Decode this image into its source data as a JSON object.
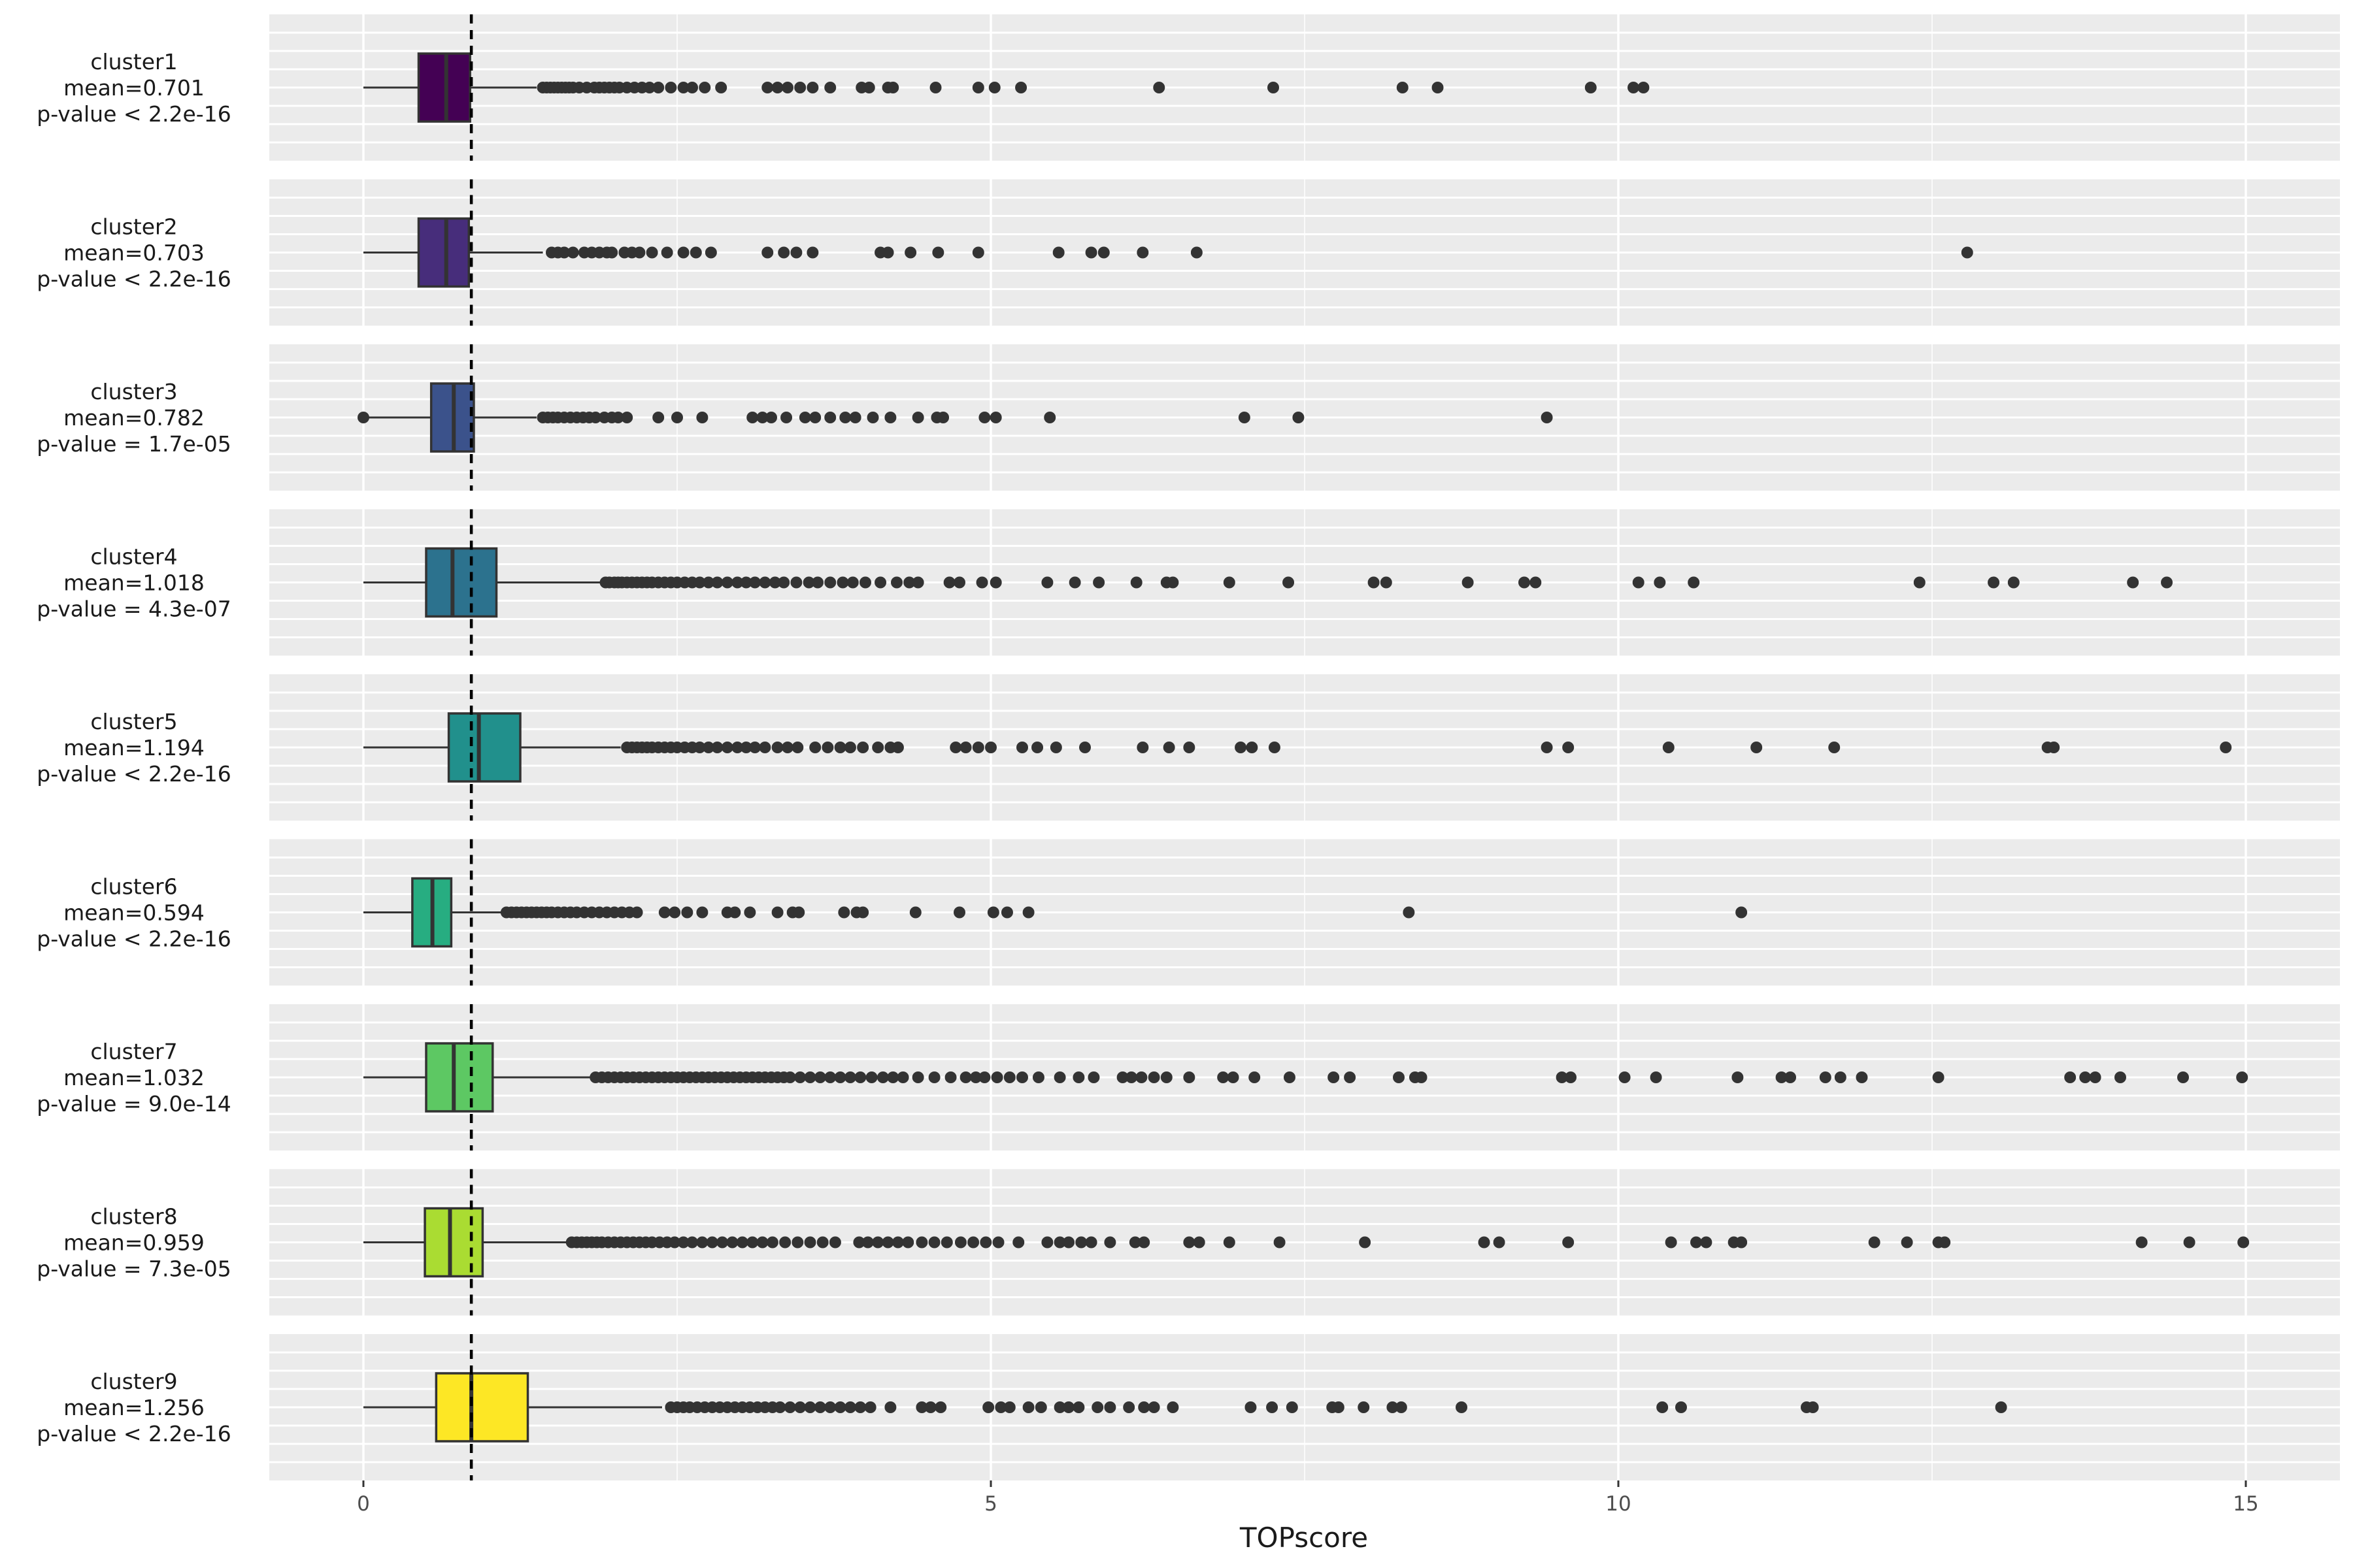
{
  "chart_data": {
    "type": "boxplot",
    "xlabel": "TOPscore",
    "xlim": [
      -0.75,
      15.75
    ],
    "x_ticks": [
      0,
      5,
      10,
      15
    ],
    "x_tick_labels": [
      "0",
      "5",
      "10",
      "15"
    ],
    "reference_line": {
      "x": 0.86,
      "style": "dashed",
      "color": "#000000"
    },
    "grid": true,
    "panels": [
      {
        "name": "cluster1",
        "mean_label": "mean=0.701",
        "pvalue_label": "p-value < 2.2e-16",
        "color": "#440154",
        "whisker_low": 0,
        "q1": 0.44,
        "median": 0.66,
        "q3": 0.85,
        "whisker_high": 1.38,
        "outliers": [
          1.43,
          1.46,
          1.49,
          1.52,
          1.55,
          1.58,
          1.61,
          1.64,
          1.67,
          1.72,
          1.78,
          1.84,
          1.88,
          1.92,
          1.96,
          2.0,
          2.04,
          2.1,
          2.16,
          2.22,
          2.28,
          2.35,
          2.45,
          2.55,
          2.62,
          2.72,
          2.85,
          3.22,
          3.3,
          3.38,
          3.48,
          3.58,
          3.72,
          3.97,
          4.03,
          4.18,
          4.22,
          4.56,
          4.9,
          5.03,
          5.24,
          6.34,
          7.25,
          8.28,
          8.56,
          9.78,
          10.12,
          10.2
        ]
      },
      {
        "name": "cluster2",
        "mean_label": "mean=0.703",
        "pvalue_label": "p-value < 2.2e-16",
        "color": "#472D7B",
        "whisker_low": 0,
        "q1": 0.44,
        "median": 0.66,
        "q3": 0.84,
        "whisker_high": 1.43,
        "outliers": [
          1.5,
          1.55,
          1.6,
          1.67,
          1.76,
          1.82,
          1.88,
          1.94,
          1.98,
          2.08,
          2.14,
          2.2,
          2.3,
          2.42,
          2.55,
          2.65,
          2.77,
          3.22,
          3.35,
          3.45,
          3.58,
          4.12,
          4.18,
          4.36,
          4.58,
          4.9,
          5.54,
          5.8,
          5.9,
          6.21,
          6.64,
          12.78
        ]
      },
      {
        "name": "cluster3",
        "mean_label": "mean=0.782",
        "pvalue_label": "p-value = 1.7e-05",
        "color": "#3B528B",
        "whisker_low": 0.02,
        "q1": 0.54,
        "median": 0.72,
        "q3": 0.88,
        "whisker_high": 1.38,
        "outliers": [
          0.0,
          1.43,
          1.47,
          1.51,
          1.55,
          1.6,
          1.65,
          1.7,
          1.75,
          1.8,
          1.85,
          1.92,
          1.98,
          2.03,
          2.1,
          2.35,
          2.5,
          2.7,
          3.1,
          3.18,
          3.25,
          3.37,
          3.52,
          3.6,
          3.72,
          3.84,
          3.92,
          4.06,
          4.2,
          4.42,
          4.57,
          4.62,
          4.95,
          5.04,
          5.47,
          7.02,
          7.45,
          9.43
        ]
      },
      {
        "name": "cluster4",
        "mean_label": "mean=1.018",
        "pvalue_label": "p-value = 4.3e-07",
        "color": "#2C728E",
        "whisker_low": 0,
        "q1": 0.5,
        "median": 0.71,
        "q3": 1.06,
        "whisker_high": 1.9,
        "outliers": [
          1.93,
          1.96,
          2.0,
          2.03,
          2.06,
          2.1,
          2.14,
          2.18,
          2.22,
          2.26,
          2.3,
          2.35,
          2.4,
          2.45,
          2.5,
          2.56,
          2.62,
          2.68,
          2.75,
          2.82,
          2.9,
          2.98,
          3.05,
          3.12,
          3.2,
          3.28,
          3.35,
          3.45,
          3.55,
          3.62,
          3.72,
          3.82,
          3.9,
          4.0,
          4.12,
          4.25,
          4.35,
          4.42,
          4.67,
          4.75,
          4.93,
          5.04,
          5.45,
          5.67,
          5.86,
          6.16,
          6.4,
          6.45,
          6.9,
          7.37,
          8.05,
          8.15,
          8.8,
          9.25,
          9.34,
          10.16,
          10.33,
          10.6,
          12.4,
          12.99,
          13.15,
          14.1,
          14.37
        ]
      },
      {
        "name": "cluster5",
        "mean_label": "mean=1.194",
        "pvalue_label": "p-value < 2.2e-16",
        "color": "#21908C",
        "whisker_low": 0,
        "q1": 0.68,
        "median": 0.92,
        "q3": 1.25,
        "whisker_high": 2.05,
        "outliers": [
          2.1,
          2.14,
          2.18,
          2.22,
          2.26,
          2.3,
          2.35,
          2.4,
          2.45,
          2.5,
          2.56,
          2.62,
          2.68,
          2.75,
          2.82,
          2.9,
          2.98,
          3.05,
          3.12,
          3.2,
          3.3,
          3.38,
          3.46,
          3.6,
          3.7,
          3.8,
          3.88,
          3.98,
          4.1,
          4.2,
          4.26,
          4.72,
          4.8,
          4.9,
          5.0,
          5.25,
          5.37,
          5.52,
          5.75,
          6.21,
          6.42,
          6.58,
          6.99,
          7.08,
          7.26,
          9.43,
          9.6,
          10.4,
          11.1,
          11.72,
          13.42,
          13.47,
          14.84
        ]
      },
      {
        "name": "cluster6",
        "mean_label": "mean=0.594",
        "pvalue_label": "p-value < 2.2e-16",
        "color": "#27AD81",
        "whisker_low": 0,
        "q1": 0.39,
        "median": 0.55,
        "q3": 0.7,
        "whisker_high": 1.12,
        "outliers": [
          1.14,
          1.18,
          1.22,
          1.26,
          1.3,
          1.34,
          1.38,
          1.42,
          1.46,
          1.5,
          1.55,
          1.6,
          1.65,
          1.7,
          1.76,
          1.82,
          1.88,
          1.94,
          2.0,
          2.06,
          2.12,
          2.18,
          2.4,
          2.48,
          2.58,
          2.7,
          2.9,
          2.96,
          3.08,
          3.3,
          3.42,
          3.47,
          3.83,
          3.93,
          3.98,
          4.4,
          4.75,
          5.02,
          5.13,
          5.3,
          8.33,
          10.98
        ]
      },
      {
        "name": "cluster7",
        "mean_label": "mean=1.032",
        "pvalue_label": "p-value = 9.0e-14",
        "color": "#5DC863",
        "whisker_low": 0,
        "q1": 0.5,
        "median": 0.72,
        "q3": 1.03,
        "whisker_high": 1.82,
        "outliers": [
          1.85,
          1.9,
          1.95,
          2.0,
          2.05,
          2.1,
          2.15,
          2.2,
          2.25,
          2.3,
          2.35,
          2.4,
          2.45,
          2.5,
          2.55,
          2.6,
          2.65,
          2.7,
          2.75,
          2.8,
          2.85,
          2.9,
          2.95,
          3.0,
          3.05,
          3.1,
          3.15,
          3.2,
          3.25,
          3.3,
          3.35,
          3.4,
          3.48,
          3.56,
          3.64,
          3.72,
          3.8,
          3.88,
          3.96,
          4.05,
          4.14,
          4.22,
          4.3,
          4.42,
          4.55,
          4.68,
          4.8,
          4.88,
          4.95,
          5.05,
          5.15,
          5.25,
          5.38,
          5.55,
          5.7,
          5.82,
          6.05,
          6.12,
          6.2,
          6.3,
          6.4,
          6.58,
          6.85,
          6.93,
          7.1,
          7.38,
          7.73,
          7.86,
          8.25,
          8.38,
          8.43,
          9.55,
          9.62,
          10.05,
          10.3,
          10.95,
          11.3,
          11.37,
          11.65,
          11.77,
          11.94,
          12.55,
          13.6,
          13.72,
          13.8,
          14.0,
          14.5,
          14.97
        ]
      },
      {
        "name": "cluster8",
        "mean_label": "mean=0.959",
        "pvalue_label": "p-value = 7.3e-05",
        "color": "#AADC32",
        "whisker_low": 0,
        "q1": 0.49,
        "median": 0.69,
        "q3": 0.95,
        "whisker_high": 1.63,
        "outliers": [
          1.66,
          1.7,
          1.74,
          1.78,
          1.82,
          1.86,
          1.9,
          1.95,
          2.0,
          2.05,
          2.1,
          2.15,
          2.2,
          2.25,
          2.3,
          2.36,
          2.42,
          2.48,
          2.55,
          2.62,
          2.7,
          2.78,
          2.86,
          2.94,
          3.02,
          3.1,
          3.18,
          3.26,
          3.36,
          3.46,
          3.56,
          3.66,
          3.76,
          3.95,
          4.02,
          4.1,
          4.18,
          4.26,
          4.34,
          4.45,
          4.55,
          4.65,
          4.76,
          4.86,
          4.96,
          5.06,
          5.22,
          5.45,
          5.55,
          5.62,
          5.72,
          5.8,
          5.95,
          6.15,
          6.22,
          6.58,
          6.66,
          6.9,
          7.3,
          7.98,
          8.93,
          9.05,
          9.6,
          10.42,
          10.62,
          10.7,
          10.92,
          10.98,
          12.04,
          12.3,
          12.55,
          12.6,
          14.17,
          14.55,
          14.98
        ]
      },
      {
        "name": "cluster9",
        "mean_label": "mean=1.256",
        "pvalue_label": "p-value < 2.2e-16",
        "color": "#FDE725",
        "whisker_low": 0,
        "q1": 0.58,
        "median": 0.86,
        "q3": 1.31,
        "whisker_high": 2.38,
        "outliers": [
          2.45,
          2.5,
          2.55,
          2.6,
          2.66,
          2.72,
          2.78,
          2.84,
          2.9,
          2.96,
          3.02,
          3.08,
          3.14,
          3.2,
          3.26,
          3.32,
          3.4,
          3.48,
          3.56,
          3.64,
          3.72,
          3.8,
          3.88,
          3.96,
          4.04,
          4.2,
          4.45,
          4.52,
          4.6,
          4.98,
          5.08,
          5.15,
          5.3,
          5.4,
          5.55,
          5.62,
          5.7,
          5.85,
          5.95,
          6.1,
          6.22,
          6.3,
          6.45,
          7.07,
          7.24,
          7.4,
          7.72,
          7.77,
          7.97,
          8.2,
          8.27,
          8.75,
          10.35,
          10.5,
          11.5,
          11.55,
          13.05
        ]
      }
    ]
  }
}
